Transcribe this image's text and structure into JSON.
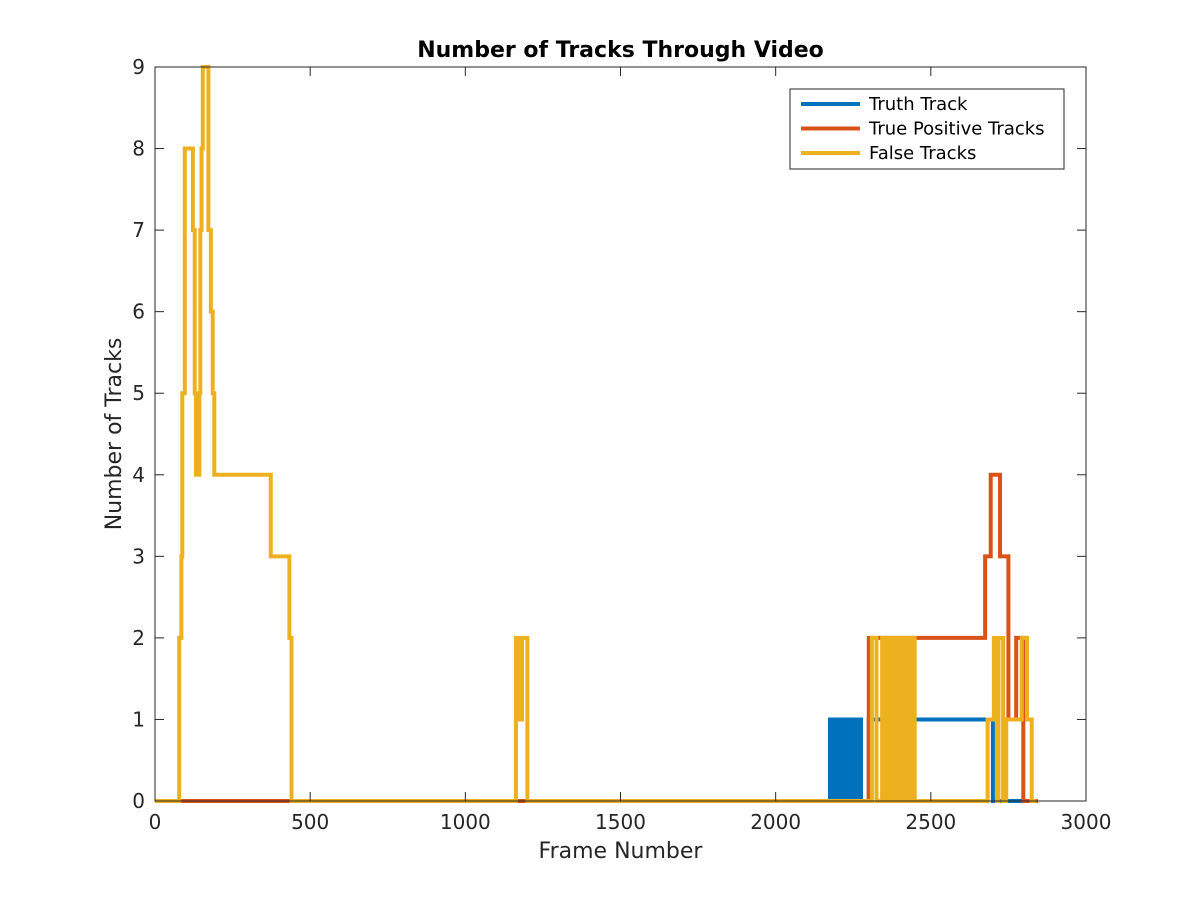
{
  "chart_data": {
    "type": "line",
    "title": "Number of Tracks Through Video",
    "xlabel": "Frame Number",
    "ylabel": "Number of Tracks",
    "xlim": [
      0,
      3000
    ],
    "ylim": [
      0,
      9
    ],
    "xticks": [
      0,
      500,
      1000,
      1500,
      2000,
      2500,
      3000
    ],
    "yticks": [
      0,
      1,
      2,
      3,
      4,
      5,
      6,
      7,
      8,
      9
    ],
    "grid": false,
    "legend_position": "top-right",
    "series": [
      {
        "name": "Truth Track",
        "color": "#0072BD",
        "step": true,
        "points": [
          [
            0,
            0
          ],
          [
            2170,
            0
          ],
          [
            2175,
            1
          ],
          [
            2180,
            0
          ],
          [
            2185,
            1
          ],
          [
            2190,
            0
          ],
          [
            2195,
            1
          ],
          [
            2200,
            0
          ],
          [
            2205,
            1
          ],
          [
            2210,
            0
          ],
          [
            2215,
            1
          ],
          [
            2220,
            0
          ],
          [
            2225,
            1
          ],
          [
            2230,
            0
          ],
          [
            2235,
            1
          ],
          [
            2240,
            0
          ],
          [
            2245,
            1
          ],
          [
            2250,
            0
          ],
          [
            2255,
            1
          ],
          [
            2262,
            0
          ],
          [
            2268,
            1
          ],
          [
            2275,
            0
          ],
          [
            2300,
            1
          ],
          [
            2690,
            1
          ],
          [
            2700,
            0
          ],
          [
            2845,
            0
          ]
        ]
      },
      {
        "name": "True Positive Tracks",
        "color": "#D95319",
        "step": true,
        "points": [
          [
            0,
            0
          ],
          [
            2295,
            0
          ],
          [
            2300,
            2
          ],
          [
            2670,
            2
          ],
          [
            2675,
            3
          ],
          [
            2690,
            3
          ],
          [
            2693,
            4
          ],
          [
            2720,
            4
          ],
          [
            2723,
            3
          ],
          [
            2745,
            3
          ],
          [
            2750,
            1
          ],
          [
            2772,
            1
          ],
          [
            2775,
            2
          ],
          [
            2795,
            2
          ],
          [
            2798,
            0
          ],
          [
            2845,
            0
          ]
        ]
      },
      {
        "name": "False Tracks",
        "color": "#EDB120",
        "step": true,
        "points": [
          [
            0,
            0
          ],
          [
            75,
            0
          ],
          [
            78,
            2
          ],
          [
            85,
            3
          ],
          [
            88,
            5
          ],
          [
            93,
            5
          ],
          [
            96,
            8
          ],
          [
            118,
            8
          ],
          [
            122,
            7
          ],
          [
            128,
            5
          ],
          [
            132,
            4
          ],
          [
            140,
            4
          ],
          [
            143,
            5
          ],
          [
            146,
            7
          ],
          [
            150,
            8
          ],
          [
            154,
            9
          ],
          [
            168,
            9
          ],
          [
            172,
            7
          ],
          [
            180,
            6
          ],
          [
            186,
            5
          ],
          [
            191,
            4
          ],
          [
            370,
            4
          ],
          [
            373,
            3
          ],
          [
            430,
            3
          ],
          [
            433,
            2
          ],
          [
            440,
            0
          ],
          [
            1160,
            0
          ],
          [
            1163,
            2
          ],
          [
            1172,
            2
          ],
          [
            1175,
            1
          ],
          [
            1180,
            1
          ],
          [
            1183,
            2
          ],
          [
            1198,
            2
          ],
          [
            1200,
            0
          ],
          [
            2308,
            0
          ],
          [
            2310,
            2
          ],
          [
            2322,
            2
          ],
          [
            2325,
            0
          ],
          [
            2340,
            0
          ],
          [
            2343,
            2
          ],
          [
            2350,
            0
          ],
          [
            2355,
            2
          ],
          [
            2362,
            0
          ],
          [
            2368,
            2
          ],
          [
            2375,
            0
          ],
          [
            2380,
            2
          ],
          [
            2388,
            0
          ],
          [
            2393,
            2
          ],
          [
            2400,
            0
          ],
          [
            2405,
            2
          ],
          [
            2412,
            0
          ],
          [
            2418,
            2
          ],
          [
            2425,
            0
          ],
          [
            2430,
            2
          ],
          [
            2438,
            0
          ],
          [
            2442,
            2
          ],
          [
            2448,
            0
          ],
          [
            2680,
            0
          ],
          [
            2683,
            1
          ],
          [
            2700,
            1
          ],
          [
            2703,
            2
          ],
          [
            2710,
            2
          ],
          [
            2713,
            0
          ],
          [
            2718,
            2
          ],
          [
            2730,
            2
          ],
          [
            2733,
            0
          ],
          [
            2740,
            0
          ],
          [
            2743,
            1
          ],
          [
            2790,
            1
          ],
          [
            2793,
            2
          ],
          [
            2808,
            2
          ],
          [
            2810,
            1
          ],
          [
            2822,
            1
          ],
          [
            2825,
            0
          ],
          [
            2840,
            0
          ]
        ]
      }
    ]
  }
}
